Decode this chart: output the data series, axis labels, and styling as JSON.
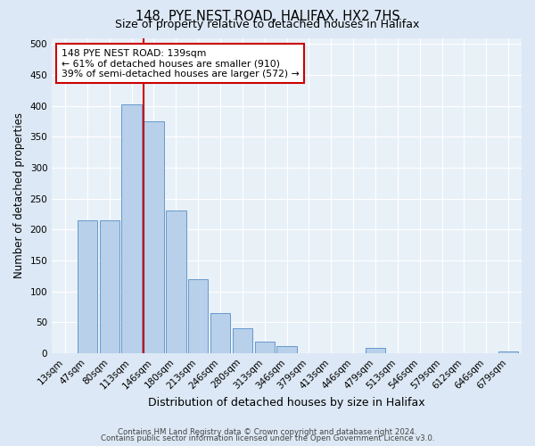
{
  "title": "148, PYE NEST ROAD, HALIFAX, HX2 7HS",
  "subtitle": "Size of property relative to detached houses in Halifax",
  "xlabel": "Distribution of detached houses by size in Halifax",
  "ylabel": "Number of detached properties",
  "bar_labels": [
    "13sqm",
    "47sqm",
    "80sqm",
    "113sqm",
    "146sqm",
    "180sqm",
    "213sqm",
    "246sqm",
    "280sqm",
    "313sqm",
    "346sqm",
    "379sqm",
    "413sqm",
    "446sqm",
    "479sqm",
    "513sqm",
    "546sqm",
    "579sqm",
    "612sqm",
    "646sqm",
    "679sqm"
  ],
  "bar_heights": [
    0,
    215,
    215,
    403,
    375,
    230,
    120,
    65,
    40,
    18,
    12,
    0,
    0,
    0,
    8,
    0,
    0,
    0,
    0,
    0,
    2
  ],
  "bar_color": "#b8d0ea",
  "bar_edge_color": "#6699cc",
  "vline_x_index": 4,
  "vline_color": "#cc0000",
  "annotation_text": "148 PYE NEST ROAD: 139sqm\n← 61% of detached houses are smaller (910)\n39% of semi-detached houses are larger (572) →",
  "annotation_box_color": "#cc0000",
  "ylim": [
    0,
    510
  ],
  "yticks": [
    0,
    50,
    100,
    150,
    200,
    250,
    300,
    350,
    400,
    450,
    500
  ],
  "footer1": "Contains HM Land Registry data © Crown copyright and database right 2024.",
  "footer2": "Contains public sector information licensed under the Open Government Licence v3.0.",
  "bg_color": "#dce8f5",
  "plot_bg_color": "#e8f0f8",
  "title_fontsize": 10.5,
  "subtitle_fontsize": 9,
  "xlabel_fontsize": 9,
  "ylabel_fontsize": 8.5,
  "tick_fontsize": 7.5,
  "footer_fontsize": 6.2
}
